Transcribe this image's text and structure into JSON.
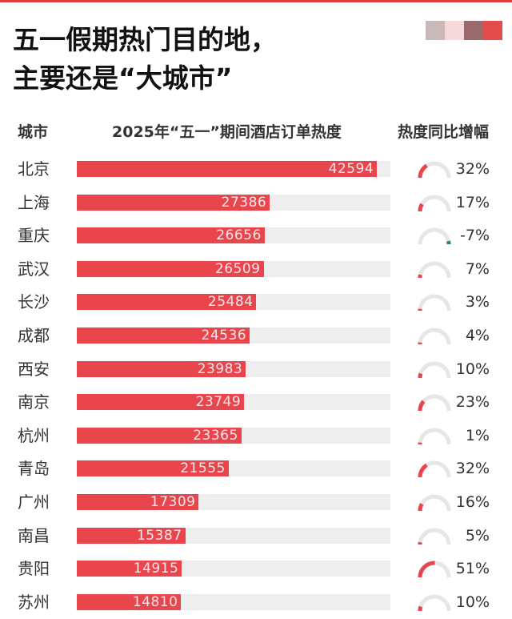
{
  "title_lines": [
    "五一假期热门目的地，",
    "主要还是“大城市”"
  ],
  "colors": {
    "bar": "#e8454d",
    "gauge_track": "#e6e6e6",
    "gauge_negative": "#2e8b57",
    "brand": [
      "#c8b8b8",
      "#f4d8dc",
      "#9a6a6a",
      "#e14b4b"
    ]
  },
  "chart_data": {
    "type": "bar",
    "title": "",
    "headers": {
      "city": "城市",
      "value": "2025年“五一”期间酒店订单热度",
      "growth": "热度同比增幅"
    },
    "categories": [
      "北京",
      "上海",
      "重庆",
      "武汉",
      "长沙",
      "成都",
      "西安",
      "南京",
      "杭州",
      "青岛",
      "广州",
      "南昌",
      "贵阳",
      "苏州"
    ],
    "values": [
      42594,
      27386,
      26656,
      26509,
      25484,
      24536,
      23983,
      23749,
      23365,
      21555,
      17309,
      15387,
      14915,
      14810
    ],
    "growth": [
      32,
      17,
      -7,
      7,
      3,
      4,
      10,
      23,
      1,
      32,
      16,
      5,
      51,
      10
    ],
    "growth_labels": [
      "32%",
      "17%",
      "-7%",
      "7%",
      "3%",
      "4%",
      "10%",
      "23%",
      "1%",
      "32%",
      "16%",
      "5%",
      "51%",
      "10%"
    ],
    "xlim": [
      0,
      44500
    ],
    "gauge_max": 100
  }
}
